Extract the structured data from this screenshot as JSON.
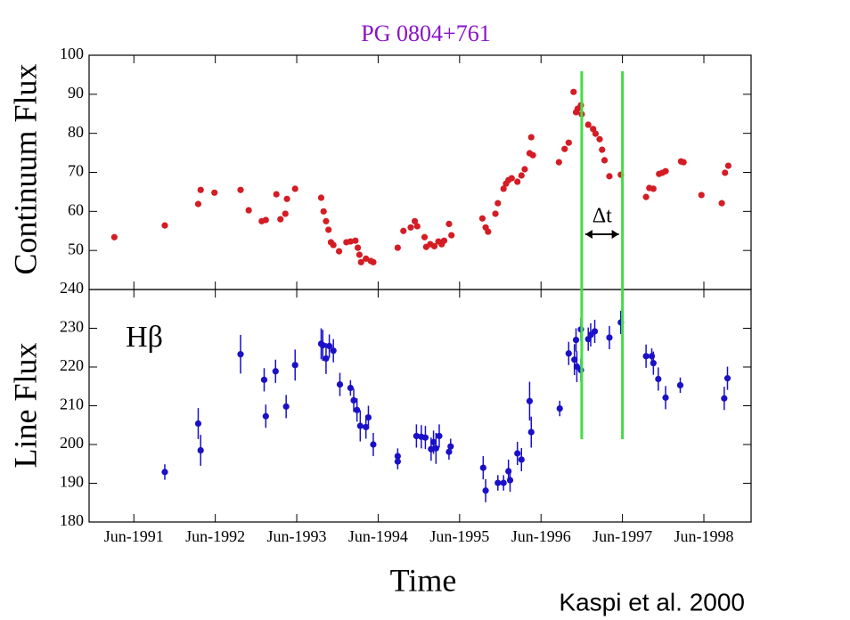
{
  "chart_data": [
    {
      "type": "scatter",
      "title": "PG 0804+761",
      "title_color": "#8a14c8",
      "y_label": "Continuum Flux",
      "color": "#d41c24",
      "ylim": [
        40,
        100
      ],
      "yticks": [
        50,
        60,
        70,
        80,
        90,
        100
      ],
      "vlines": [
        1996.92,
        1997.42
      ],
      "vline_color": "#44dd44",
      "annotation": "Δt",
      "x": [
        1991.18,
        1991.8,
        1992.21,
        1992.24,
        1992.41,
        1992.73,
        1992.83,
        1992.99,
        1993.04,
        1993.17,
        1993.22,
        1993.28,
        1993.3,
        1993.4,
        1993.72,
        1993.75,
        1993.78,
        1993.81,
        1993.84,
        1993.87,
        1993.94,
        1994.03,
        1994.08,
        1994.14,
        1994.17,
        1994.19,
        1994.21,
        1994.27,
        1994.33,
        1994.36,
        1994.66,
        1994.73,
        1994.82,
        1994.87,
        1994.9,
        1994.99,
        1995.01,
        1995.06,
        1995.11,
        1995.16,
        1995.2,
        1995.23,
        1995.29,
        1995.32,
        1995.7,
        1995.74,
        1995.77,
        1995.86,
        1995.89,
        1995.96,
        1995.99,
        1996.02,
        1996.06,
        1996.13,
        1996.18,
        1996.22,
        1996.28,
        1996.32,
        1996.3,
        1996.64,
        1996.71,
        1996.76,
        1996.82,
        1996.85,
        1996.87,
        1996.91,
        1996.92,
        1997.0,
        1997.06,
        1997.09,
        1997.14,
        1997.17,
        1997.2,
        1997.26,
        1997.4,
        1997.71,
        1997.75,
        1997.8,
        1997.87,
        1997.91,
        1997.95,
        1998.14,
        1998.17,
        1998.39,
        1998.64,
        1998.68,
        1998.72
      ],
      "values": [
        53.4,
        56.4,
        61.9,
        65.5,
        64.8,
        65.5,
        60.3,
        57.5,
        57.8,
        64.4,
        58.0,
        59.4,
        63.2,
        65.8,
        63.5,
        60.0,
        57.5,
        55.3,
        52.1,
        51.4,
        49.8,
        52.1,
        52.3,
        52.5,
        50.7,
        48.9,
        47.0,
        47.9,
        47.3,
        47.0,
        50.7,
        55.0,
        55.9,
        57.5,
        56.2,
        53.4,
        50.9,
        51.6,
        51.1,
        52.3,
        51.6,
        52.5,
        56.8,
        53.9,
        58.2,
        55.9,
        54.8,
        59.4,
        62.1,
        65.8,
        67.1,
        68.0,
        68.5,
        67.6,
        69.2,
        70.8,
        74.9,
        74.4,
        79.0,
        72.6,
        76.0,
        77.6,
        90.6,
        85.4,
        86.3,
        87.2,
        84.9,
        82.2,
        81.1,
        79.9,
        78.5,
        75.8,
        73.1,
        69.0,
        69.4,
        63.7,
        66.0,
        65.8,
        69.6,
        69.9,
        70.3,
        72.8,
        72.6,
        64.2,
        62.1,
        69.9,
        71.7
      ]
    },
    {
      "type": "scatter",
      "y_label": "Line Flux",
      "x_label": "Time",
      "annotation": "Hβ",
      "color": "#1a10c8",
      "ylim": [
        180,
        240
      ],
      "yticks": [
        180,
        190,
        200,
        210,
        220,
        230,
        240
      ],
      "xlim": [
        1990.87,
        1999.0
      ],
      "xticks": [
        {
          "value": 1991.42,
          "label": "Jun-1991"
        },
        {
          "value": 1992.42,
          "label": "Jun-1992"
        },
        {
          "value": 1993.42,
          "label": "Jun-1993"
        },
        {
          "value": 1994.42,
          "label": "Jun-1994"
        },
        {
          "value": 1995.42,
          "label": "Jun-1995"
        },
        {
          "value": 1996.42,
          "label": "Jun-1996"
        },
        {
          "value": 1997.42,
          "label": "Jun-1997"
        },
        {
          "value": 1998.42,
          "label": "Jun-1998"
        }
      ],
      "x": [
        1991.8,
        1992.21,
        1992.24,
        1992.73,
        1993.02,
        1993.04,
        1993.16,
        1993.29,
        1993.4,
        1993.72,
        1993.74,
        1993.78,
        1993.82,
        1993.87,
        1993.95,
        1994.08,
        1994.12,
        1994.16,
        1994.2,
        1994.27,
        1994.3,
        1994.36,
        1994.66,
        1994.66,
        1994.89,
        1994.95,
        1995.0,
        1995.07,
        1995.1,
        1995.13,
        1995.17,
        1995.31,
        1995.29,
        1995.71,
        1995.74,
        1995.89,
        1995.96,
        1996.02,
        1996.04,
        1996.13,
        1996.18,
        1996.28,
        1996.3,
        1996.65,
        1996.76,
        1996.83,
        1996.85,
        1996.86,
        1996.91,
        1996.91,
        1997.0,
        1997.03,
        1997.08,
        1997.26,
        1997.4,
        1997.71,
        1997.78,
        1997.8,
        1997.86,
        1997.95,
        1998.13,
        1998.67,
        1998.71
      ],
      "values": [
        192.9,
        205.4,
        198.5,
        223.3,
        216.7,
        207.3,
        218.9,
        209.8,
        220.5,
        226.0,
        225.6,
        222.2,
        225.4,
        224.2,
        215.5,
        214.6,
        211.4,
        208.9,
        204.8,
        204.5,
        207.0,
        200.0,
        197.0,
        195.6,
        202.2,
        202.0,
        201.8,
        198.8,
        200.6,
        199.0,
        202.2,
        199.5,
        198.1,
        194.0,
        188.1,
        190.1,
        190.1,
        193.1,
        190.8,
        197.7,
        196.1,
        211.2,
        203.2,
        209.3,
        223.5,
        221.9,
        227.0,
        220.1,
        229.7,
        219.2,
        227.2,
        228.3,
        229.2,
        227.6,
        231.5,
        222.8,
        222.8,
        221.0,
        216.9,
        212.1,
        215.3,
        211.9,
        217.1
      ],
      "errors": [
        2,
        4,
        4,
        5,
        3,
        3,
        3,
        3,
        4,
        4,
        4,
        4,
        3,
        3,
        3,
        2,
        3,
        3,
        4,
        3,
        3,
        3,
        2,
        2,
        3,
        3,
        3,
        3,
        3,
        4,
        3,
        2,
        2,
        3,
        3,
        2,
        2,
        3,
        3,
        3,
        3,
        5,
        4,
        2,
        3,
        4,
        3,
        4,
        3,
        3,
        3,
        3,
        3,
        3,
        3,
        3,
        2,
        3,
        3,
        3,
        2,
        3,
        3
      ]
    }
  ],
  "source": "Kaspi et al. 2000"
}
